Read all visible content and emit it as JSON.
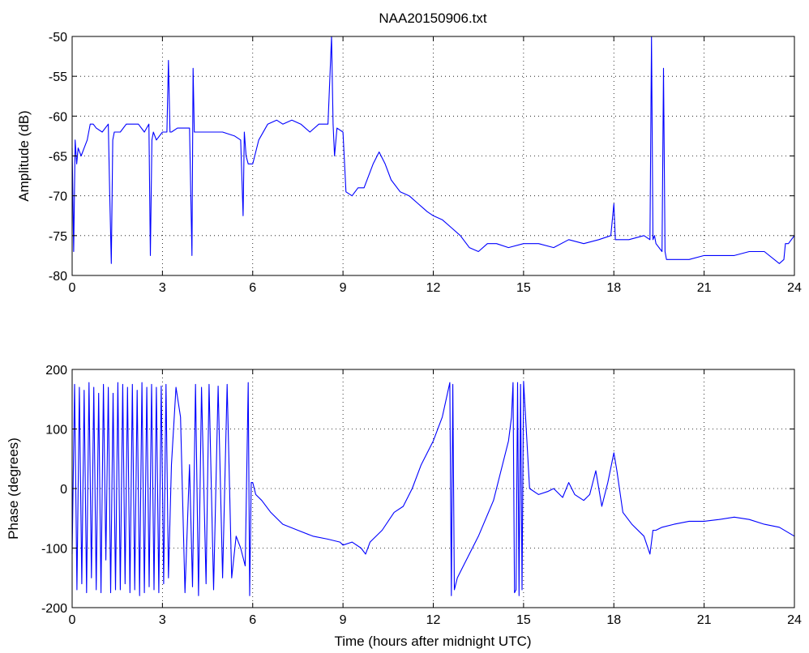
{
  "chart_data": [
    {
      "type": "line",
      "title": "NAA20150906.txt",
      "xlabel": "",
      "ylabel": "Amplitude (dB)",
      "xlim": [
        0,
        24
      ],
      "ylim": [
        -80,
        -50
      ],
      "xticks": [
        0,
        3,
        6,
        9,
        12,
        15,
        18,
        21,
        24
      ],
      "yticks": [
        -80,
        -75,
        -70,
        -65,
        -60,
        -55,
        -50
      ],
      "grid": true,
      "color": "#0000ff",
      "series": [
        {
          "x": [
            0,
            0.05,
            0.1,
            0.15,
            0.2,
            0.3,
            0.4,
            0.5,
            0.6,
            0.7,
            0.8,
            1.0,
            1.2,
            1.25,
            1.3,
            1.35,
            1.4,
            1.6,
            1.8,
            2.0,
            2.2,
            2.4,
            2.55,
            2.6,
            2.65,
            2.7,
            2.8,
            3.0,
            3.15,
            3.2,
            3.25,
            3.3,
            3.5,
            3.7,
            3.9,
            3.98,
            4.02,
            4.06,
            4.1,
            4.3,
            4.6,
            5.0,
            5.4,
            5.6,
            5.68,
            5.72,
            5.78,
            5.85,
            6.0,
            6.2,
            6.5,
            6.8,
            7.0,
            7.3,
            7.6,
            7.9,
            8.2,
            8.5,
            8.62,
            8.67,
            8.72,
            8.8,
            9.0,
            9.1,
            9.3,
            9.5,
            9.7,
            10.0,
            10.2,
            10.4,
            10.6,
            10.9,
            11.2,
            11.5,
            11.8,
            12.0,
            12.3,
            12.6,
            12.9,
            13.2,
            13.5,
            13.8,
            14.1,
            14.5,
            15.0,
            15.5,
            16.0,
            16.5,
            17.0,
            17.5,
            17.9,
            18.0,
            18.05,
            18.1,
            18.5,
            19.0,
            19.2,
            19.25,
            19.3,
            19.35,
            19.4,
            19.6,
            19.65,
            19.7,
            19.75,
            19.8,
            20.0,
            20.5,
            21.0,
            21.5,
            22.0,
            22.5,
            23.0,
            23.5,
            23.65,
            23.7,
            23.8,
            24.0
          ],
          "y": [
            -64,
            -77,
            -63,
            -66,
            -64,
            -65,
            -64,
            -63,
            -61,
            -61,
            -61.5,
            -62,
            -61,
            -70,
            -78.5,
            -63,
            -62,
            -62,
            -61,
            -61,
            -61,
            -62,
            -61,
            -77.5,
            -63,
            -62,
            -63,
            -62,
            -62,
            -53,
            -62,
            -62,
            -61.5,
            -61.5,
            -61.5,
            -77.5,
            -54,
            -62,
            -62,
            -62,
            -62,
            -62,
            -62.5,
            -63,
            -72.5,
            -62,
            -65,
            -66,
            -66,
            -63,
            -61,
            -60.5,
            -61,
            -60.5,
            -61,
            -62,
            -61,
            -61,
            -50,
            -61,
            -65,
            -61.5,
            -62,
            -69.5,
            -70,
            -69,
            -69,
            -66,
            -64.5,
            -66,
            -68,
            -69.5,
            -70,
            -71,
            -72,
            -72.5,
            -73,
            -74,
            -75,
            -76.5,
            -77,
            -76,
            -76,
            -76.5,
            -76,
            -76,
            -76.5,
            -75.5,
            -76,
            -75.5,
            -75,
            -71,
            -75.5,
            -75.5,
            -75.5,
            -75,
            -75.5,
            -50,
            -75.5,
            -75,
            -76,
            -77,
            -54,
            -77,
            -78,
            -78,
            -78,
            -78,
            -77.5,
            -77.5,
            -77.5,
            -77,
            -77,
            -78.5,
            -78,
            -76,
            -76,
            -75
          ]
        }
      ]
    },
    {
      "type": "line",
      "title": "",
      "xlabel": "Time (hours after midnight UTC)",
      "ylabel": "Phase (degrees)",
      "xlim": [
        0,
        24
      ],
      "ylim": [
        -200,
        200
      ],
      "xticks": [
        0,
        3,
        6,
        9,
        12,
        15,
        18,
        21,
        24
      ],
      "yticks": [
        -200,
        -100,
        0,
        100,
        200
      ],
      "grid": true,
      "color": "#0000ff",
      "series": [
        {
          "x": [
            0,
            0.08,
            0.16,
            0.24,
            0.32,
            0.4,
            0.48,
            0.56,
            0.64,
            0.72,
            0.8,
            0.88,
            0.96,
            1.04,
            1.12,
            1.2,
            1.28,
            1.36,
            1.44,
            1.52,
            1.6,
            1.68,
            1.76,
            1.84,
            1.92,
            2.0,
            2.08,
            2.16,
            2.24,
            2.32,
            2.4,
            2.48,
            2.56,
            2.64,
            2.72,
            2.8,
            2.88,
            2.96,
            3.04,
            3.12,
            3.2,
            3.3,
            3.45,
            3.6,
            3.75,
            3.9,
            4.0,
            4.1,
            4.2,
            4.3,
            4.45,
            4.55,
            4.7,
            4.85,
            5.0,
            5.15,
            5.3,
            5.45,
            5.6,
            5.75,
            5.85,
            5.9,
            5.95,
            6.0,
            6.1,
            6.3,
            6.6,
            7.0,
            7.5,
            8.0,
            8.5,
            8.9,
            9.0,
            9.3,
            9.6,
            9.75,
            9.9,
            10.3,
            10.7,
            11.0,
            11.3,
            11.6,
            12.0,
            12.3,
            12.55,
            12.6,
            12.65,
            12.7,
            12.8,
            13.0,
            13.5,
            14.0,
            14.3,
            14.5,
            14.6,
            14.65,
            14.7,
            14.75,
            14.8,
            14.85,
            14.9,
            14.95,
            15.0,
            15.2,
            15.5,
            15.8,
            16.0,
            16.3,
            16.5,
            16.7,
            17.0,
            17.2,
            17.4,
            17.6,
            17.8,
            18.0,
            18.1,
            18.3,
            18.6,
            19.0,
            19.2,
            19.25,
            19.3,
            19.4,
            19.6,
            20.0,
            20.5,
            21.0,
            21.5,
            22.0,
            22.5,
            23.0,
            23.5,
            24.0
          ],
          "y": [
            -110,
            175,
            -170,
            170,
            -160,
            165,
            -175,
            178,
            -150,
            170,
            -170,
            160,
            -175,
            175,
            -120,
            170,
            -175,
            160,
            -170,
            178,
            -170,
            175,
            -160,
            170,
            -175,
            175,
            -170,
            165,
            -180,
            178,
            -175,
            170,
            -165,
            175,
            -170,
            170,
            -175,
            172,
            -160,
            175,
            -150,
            40,
            170,
            120,
            -175,
            40,
            -165,
            175,
            -180,
            170,
            -160,
            175,
            -170,
            172,
            -150,
            175,
            -150,
            -80,
            -100,
            -130,
            178,
            -180,
            10,
            10,
            -10,
            -20,
            -40,
            -60,
            -70,
            -80,
            -85,
            -90,
            -95,
            -90,
            -100,
            -110,
            -90,
            -70,
            -40,
            -30,
            0,
            40,
            80,
            120,
            178,
            -180,
            175,
            -170,
            -150,
            -130,
            -80,
            -20,
            40,
            80,
            120,
            178,
            -175,
            -170,
            178,
            -180,
            175,
            -170,
            180,
            0,
            -10,
            -5,
            0,
            -15,
            10,
            -10,
            -20,
            -10,
            30,
            -30,
            10,
            60,
            30,
            -40,
            -60,
            -80,
            -110,
            -90,
            -70,
            -70,
            -65,
            -60,
            -55,
            -55,
            -52,
            -48,
            -52,
            -60,
            -65,
            -80
          ]
        }
      ]
    }
  ]
}
